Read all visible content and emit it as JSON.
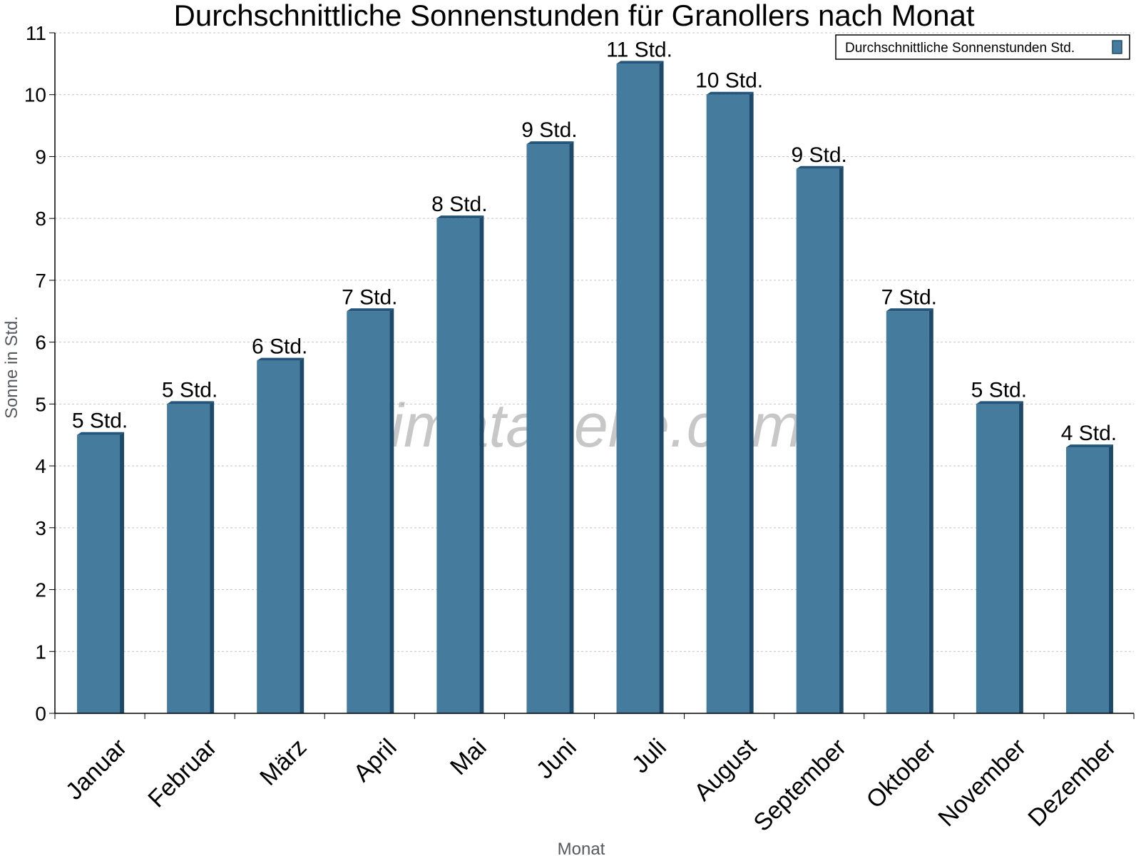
{
  "chart_data": {
    "type": "bar",
    "title": "Durchschnittliche Sonnenstunden für Granollers nach Monat",
    "xlabel": "Monat",
    "ylabel": "Sonne in Std.",
    "ylim": [
      0,
      11
    ],
    "yticks": [
      0,
      1,
      2,
      3,
      4,
      5,
      6,
      7,
      8,
      9,
      10,
      11
    ],
    "grid": true,
    "legend_position": "top-right",
    "categories": [
      "Januar",
      "Februar",
      "März",
      "April",
      "Mai",
      "Juni",
      "Juli",
      "August",
      "September",
      "Oktober",
      "November",
      "Dezember"
    ],
    "series": [
      {
        "name": "Durchschnittliche Sonnenstunden Std.",
        "color": "#457b9d",
        "values": [
          4.5,
          5.0,
          5.7,
          6.5,
          8.0,
          9.2,
          10.5,
          10.0,
          8.8,
          6.5,
          5.0,
          4.3
        ],
        "labels": [
          "5 Std.",
          "5 Std.",
          "6 Std.",
          "7 Std.",
          "8 Std.",
          "9 Std.",
          "11 Std.",
          "10 Std.",
          "9 Std.",
          "7 Std.",
          "5 Std.",
          "4 Std."
        ]
      }
    ],
    "watermark": "klimatabelle.com"
  }
}
